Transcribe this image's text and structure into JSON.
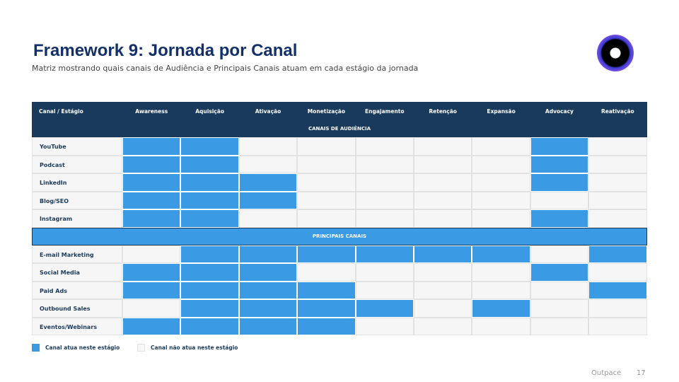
{
  "title": "Framework 9: Jornada por Canal",
  "subtitle": "Matriz mostrando quais canais de Audiência e Principais Canais atuam em cada estágio da jornada",
  "table": {
    "corner": "Canal / Estágio",
    "stages": [
      "Awareness",
      "Aquisição",
      "Ativação",
      "Monetização",
      "Engajamento",
      "Retenção",
      "Expansão",
      "Advocacy",
      "Reativação"
    ],
    "sections": [
      {
        "label": "CANAIS DE AUDIÊNCIA",
        "rows": [
          {
            "name": "YouTube",
            "cells": [
              1,
              1,
              0,
              0,
              0,
              0,
              0,
              1,
              0
            ]
          },
          {
            "name": "Podcast",
            "cells": [
              1,
              1,
              0,
              0,
              0,
              0,
              0,
              1,
              0
            ]
          },
          {
            "name": "LinkedIn",
            "cells": [
              1,
              1,
              1,
              0,
              0,
              0,
              0,
              1,
              0
            ]
          },
          {
            "name": "Blog/SEO",
            "cells": [
              1,
              1,
              1,
              0,
              0,
              0,
              0,
              0,
              0
            ]
          },
          {
            "name": "Instagram",
            "cells": [
              1,
              1,
              0,
              0,
              0,
              0,
              0,
              1,
              0
            ]
          }
        ]
      },
      {
        "label": "PRINCIPAIS CANAIS",
        "rows": [
          {
            "name": "E-mail Marketing",
            "cells": [
              0,
              1,
              1,
              1,
              1,
              1,
              1,
              0,
              1
            ]
          },
          {
            "name": "Social Media",
            "cells": [
              1,
              1,
              1,
              0,
              0,
              0,
              0,
              1,
              0
            ]
          },
          {
            "name": "Paid Ads",
            "cells": [
              1,
              1,
              1,
              1,
              0,
              0,
              0,
              0,
              1
            ]
          },
          {
            "name": "Outbound Sales",
            "cells": [
              0,
              1,
              1,
              1,
              1,
              0,
              1,
              0,
              0
            ]
          },
          {
            "name": "Eventos/Webinars",
            "cells": [
              1,
              1,
              1,
              1,
              0,
              0,
              0,
              0,
              0
            ]
          }
        ]
      }
    ]
  },
  "legend": {
    "active": "Canal atua neste estágio",
    "inactive": "Canal não atua neste estágio"
  },
  "colors": {
    "active": "#3a9be4",
    "inactive": "#f6f6f6",
    "header": "#1a3a5c"
  },
  "footer": {
    "brand": "Outpace",
    "page": "17"
  }
}
